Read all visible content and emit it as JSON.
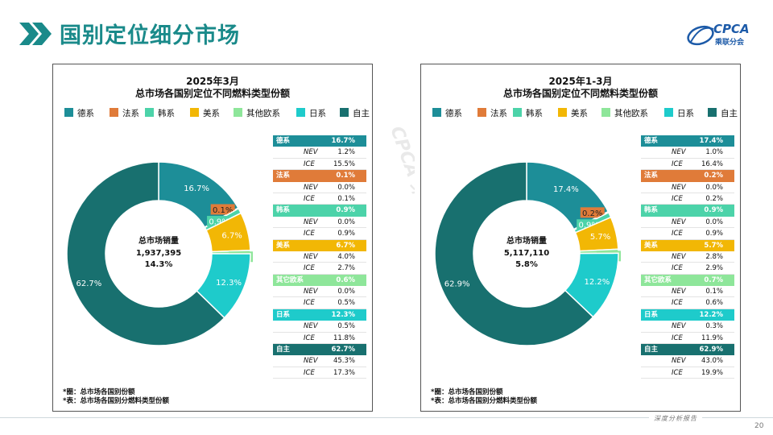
{
  "header": {
    "title": "国别定位细分市场",
    "logo_text": "CPCA",
    "logo_sub": "乘联分会",
    "accent_color": "#1a8a8a"
  },
  "footer": {
    "text": "深度分析报告",
    "page_number": "20"
  },
  "watermark": {
    "text": "CPCA 乘联分会"
  },
  "colors": {
    "德系": "#1d8e98",
    "法系": "#e07b39",
    "韩系": "#4cd3a9",
    "美系": "#f2b705",
    "其他欧系": "#8ee69a",
    "日系": "#1ecbcb",
    "自主": "#18706f"
  },
  "panels": [
    {
      "title_line1": "2025年3月",
      "title_line2": "总市场各国别定位不同燃料类型份额",
      "center": {
        "label": "总市场销量",
        "volume": "1,937,395",
        "growth": "14.3%"
      },
      "notes": [
        "*圈：总市场各国别份额",
        "*表：总市场各国别分燃料类型份额"
      ],
      "legend": [
        "德系",
        "法系",
        "韩系",
        "美系",
        "其他欧系",
        "日系",
        "自主"
      ],
      "chart_data": {
        "type": "pie",
        "categories": [
          "德系",
          "法系",
          "韩系",
          "美系",
          "其他欧系",
          "日系",
          "自主"
        ],
        "values": [
          16.7,
          0.1,
          0.9,
          6.7,
          0.6,
          12.3,
          62.7
        ],
        "data_labels": [
          "16.7%",
          "0.1%",
          "0.9%",
          "6.7%",
          "0.6%",
          "12.3%",
          "62.7%"
        ],
        "title": "2025年3月 总市场各国别定位不同燃料类型份额",
        "legend_position": "top"
      },
      "table": [
        {
          "name": "德系",
          "total": "16.7%",
          "nev_label": "NEV",
          "nev": "1.2%",
          "ice_label": "ICE",
          "ice": "15.5%"
        },
        {
          "name": "法系",
          "total": "0.1%",
          "nev_label": "NEV",
          "nev": "0.0%",
          "ice_label": "ICE",
          "ice": "0.1%"
        },
        {
          "name": "韩系",
          "total": "0.9%",
          "nev_label": "NEV",
          "nev": "0.0%",
          "ice_label": "ICE",
          "ice": "0.9%"
        },
        {
          "name": "美系",
          "total": "6.7%",
          "nev_label": "NEV",
          "nev": "4.0%",
          "ice_label": "ICE",
          "ice": "2.7%"
        },
        {
          "name": "其它欧系",
          "total": "0.6%",
          "nev_label": "NEV",
          "nev": "0.0%",
          "ice_label": "ICE",
          "ice": "0.5%"
        },
        {
          "name": "日系",
          "total": "12.3%",
          "nev_label": "NEV",
          "nev": "0.5%",
          "ice_label": "ICE",
          "ice": "11.8%"
        },
        {
          "name": "自主",
          "total": "62.7%",
          "nev_label": "NEV",
          "nev": "45.3%",
          "ice_label": "ICE",
          "ice": "17.3%"
        }
      ]
    },
    {
      "title_line1": "2025年1-3月",
      "title_line2": "总市场各国别定位不同燃料类型份额",
      "center": {
        "label": "总市场销量",
        "volume": "5,117,110",
        "growth": "5.8%"
      },
      "notes": [
        "*圈：总市场各国别份额",
        "*表：总市场各国别分燃料类型份额"
      ],
      "legend": [
        "德系",
        "法系",
        "韩系",
        "美系",
        "其他欧系",
        "日系",
        "自主"
      ],
      "chart_data": {
        "type": "pie",
        "categories": [
          "德系",
          "法系",
          "韩系",
          "美系",
          "其他欧系",
          "日系",
          "自主"
        ],
        "values": [
          17.4,
          0.2,
          0.9,
          5.7,
          0.7,
          12.2,
          62.9
        ],
        "data_labels": [
          "17.4%",
          "0.2%",
          "0.9%",
          "5.7%",
          "0.7%",
          "12.2%",
          "62.9%"
        ],
        "title": "2025年1-3月 总市场各国别定位不同燃料类型份额",
        "legend_position": "top"
      },
      "table": [
        {
          "name": "德系",
          "total": "17.4%",
          "nev_label": "NEV",
          "nev": "1.0%",
          "ice_label": "ICE",
          "ice": "16.4%"
        },
        {
          "name": "法系",
          "total": "0.2%",
          "nev_label": "NEV",
          "nev": "0.0%",
          "ice_label": "ICE",
          "ice": "0.2%"
        },
        {
          "name": "韩系",
          "total": "0.9%",
          "nev_label": "NEV",
          "nev": "0.0%",
          "ice_label": "ICE",
          "ice": "0.9%"
        },
        {
          "name": "美系",
          "total": "5.7%",
          "nev_label": "NEV",
          "nev": "2.8%",
          "ice_label": "ICE",
          "ice": "2.9%"
        },
        {
          "name": "其它欧系",
          "total": "0.7%",
          "nev_label": "NEV",
          "nev": "0.1%",
          "ice_label": "ICE",
          "ice": "0.6%"
        },
        {
          "name": "日系",
          "total": "12.2%",
          "nev_label": "NEV",
          "nev": "0.3%",
          "ice_label": "ICE",
          "ice": "11.9%"
        },
        {
          "name": "自主",
          "total": "62.9%",
          "nev_label": "NEV",
          "nev": "43.0%",
          "ice_label": "ICE",
          "ice": "19.9%"
        }
      ]
    }
  ]
}
